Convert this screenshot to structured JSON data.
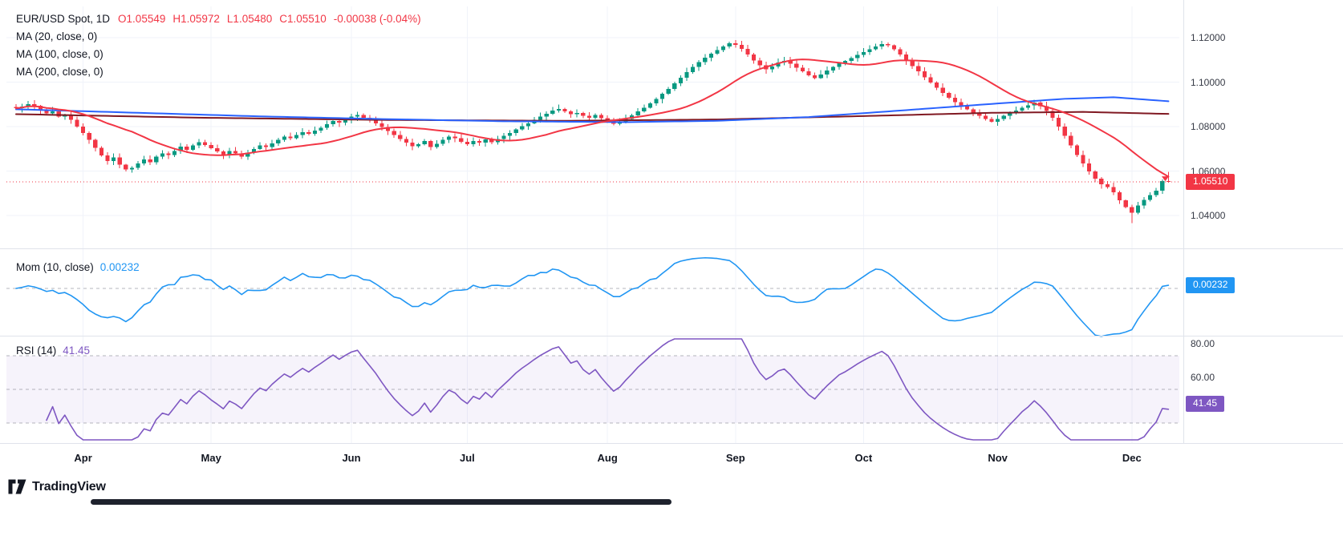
{
  "header": {
    "symbol": "EUR/USD Spot, 1D",
    "ohlc": [
      "O1.05549",
      "H1.05972",
      "L1.05480",
      "C1.05510",
      "-0.00038 (-0.04%)"
    ],
    "ma_labels": [
      "MA (20, close, 0)",
      "MA (100, close, 0)",
      "MA (200, close, 0)"
    ]
  },
  "panes": {
    "momentum": {
      "label": "Mom (10, close)",
      "value": "0.00232"
    },
    "rsi": {
      "label": "RSI (14)",
      "value": "41.45"
    }
  },
  "price_axis": {
    "labels": [
      {
        "text": "1.12000",
        "value": 1.12
      },
      {
        "text": "1.10000",
        "value": 1.1
      },
      {
        "text": "1.08000",
        "value": 1.08
      },
      {
        "text": "1.06000",
        "value": 1.06
      },
      {
        "text": "1.04000",
        "value": 1.04
      }
    ],
    "last_price_badge": "1.05510"
  },
  "colors": {
    "up": "#089981",
    "down": "#f23645",
    "ma20": "#f23645",
    "ma100": "#2962ff",
    "ma200": "#801922",
    "mom": "#2196f3",
    "rsi": "#7e57c2",
    "grid": "#f0f3fa",
    "separator": "#e0e3eb",
    "dashed": "#787b86"
  },
  "footer": {
    "logo_text": "TradingView"
  },
  "chart_data": {
    "type": "candlestick",
    "title": "EUR/USD Spot, 1D",
    "interval": "1D",
    "price_ylim": [
      1.035,
      1.125
    ],
    "last_candle": {
      "open": 1.05549,
      "high": 1.05972,
      "low": 1.0548,
      "close": 1.0551
    },
    "closes": [
      1.0882,
      1.089,
      1.0901,
      1.0893,
      1.0878,
      1.086,
      1.0868,
      1.0845,
      1.0852,
      1.083,
      1.08,
      1.0772,
      1.074,
      1.0705,
      1.067,
      1.0645,
      1.0662,
      1.0628,
      1.0608,
      1.0615,
      1.0635,
      1.0652,
      1.064,
      1.0665,
      1.068,
      1.0672,
      1.069,
      1.071,
      1.0695,
      1.0715,
      1.073,
      1.0718,
      1.0702,
      1.0688,
      1.0672,
      1.069,
      1.068,
      1.0665,
      1.0682,
      1.07,
      1.0715,
      1.0708,
      1.0725,
      1.074,
      1.0755,
      1.0748,
      1.0762,
      1.0775,
      1.0768,
      1.0782,
      1.0795,
      1.081,
      1.0825,
      1.0818,
      1.0832,
      1.0845,
      1.0852,
      1.084,
      1.0828,
      1.0815,
      1.0798,
      1.078,
      1.0762,
      1.0745,
      1.0728,
      1.0712,
      1.072,
      1.0735,
      1.0708,
      1.0722,
      1.074,
      1.0755,
      1.0748,
      1.0732,
      1.072,
      1.0735,
      1.0728,
      1.0742,
      1.073,
      1.0745,
      1.0758,
      1.0772,
      1.0788,
      1.0802,
      1.0815,
      1.083,
      1.0845,
      1.0858,
      1.0872,
      1.088,
      1.0868,
      1.0855,
      1.0862,
      1.0848,
      1.084,
      1.0852,
      1.0838,
      1.0825,
      1.0812,
      1.082,
      1.0835,
      1.085,
      1.0868,
      1.0885,
      1.0905,
      1.0925,
      1.0948,
      1.097,
      1.0995,
      1.102,
      1.1045,
      1.1068,
      1.109,
      1.111,
      1.1128,
      1.1145,
      1.116,
      1.1175,
      1.1168,
      1.115,
      1.1125,
      1.1098,
      1.1075,
      1.1058,
      1.107,
      1.1088,
      1.1095,
      1.1082,
      1.1065,
      1.1048,
      1.103,
      1.1018,
      1.1035,
      1.1052,
      1.1068,
      1.1085,
      1.1095,
      1.1108,
      1.1122,
      1.1135,
      1.1148,
      1.116,
      1.1172,
      1.1165,
      1.1148,
      1.1125,
      1.1098,
      1.1072,
      1.1048,
      1.1022,
      1.0998,
      1.0975,
      1.0952,
      1.093,
      1.091,
      1.0892,
      1.0878,
      1.0862,
      1.0848,
      1.0835,
      1.0822,
      1.0835,
      1.0848,
      1.086,
      1.0872,
      1.0885,
      1.0895,
      1.0908,
      1.0892,
      1.087,
      1.084,
      1.08,
      1.0758,
      1.0715,
      1.0672,
      1.0635,
      1.0598,
      1.0565,
      1.054,
      1.0528,
      1.0505,
      1.0468,
      1.0438,
      1.0412,
      1.0445,
      1.047,
      1.0492,
      1.0512,
      1.0555,
      1.0551
    ],
    "x_ticks": [
      {
        "label": "Apr",
        "bar": 11
      },
      {
        "label": "May",
        "bar": 32
      },
      {
        "label": "Jun",
        "bar": 55
      },
      {
        "label": "Jul",
        "bar": 74
      },
      {
        "label": "Aug",
        "bar": 97
      },
      {
        "label": "Sep",
        "bar": 118
      },
      {
        "label": "Oct",
        "bar": 139
      },
      {
        "label": "Nov",
        "bar": 161
      },
      {
        "label": "Dec",
        "bar": 183
      }
    ],
    "overlays": [
      {
        "name": "MA (20, close, 0)",
        "color_key": "ma20",
        "source": "sma_20_of_closes"
      },
      {
        "name": "MA (100, close, 0)",
        "color_key": "ma100",
        "waypoints": [
          [
            0,
            1.0878
          ],
          [
            20,
            1.0862
          ],
          [
            40,
            1.0846
          ],
          [
            60,
            1.0834
          ],
          [
            80,
            1.0824
          ],
          [
            100,
            1.082
          ],
          [
            115,
            1.0826
          ],
          [
            130,
            1.0843
          ],
          [
            145,
            1.0872
          ],
          [
            160,
            1.0902
          ],
          [
            172,
            1.0925
          ],
          [
            180,
            1.0932
          ],
          [
            189,
            1.0914
          ]
        ]
      },
      {
        "name": "MA (200, close, 0)",
        "color_key": "ma200",
        "waypoints": [
          [
            0,
            1.0856
          ],
          [
            30,
            1.084
          ],
          [
            60,
            1.083
          ],
          [
            90,
            1.0826
          ],
          [
            115,
            1.0832
          ],
          [
            140,
            1.0848
          ],
          [
            160,
            1.0862
          ],
          [
            175,
            1.0866
          ],
          [
            189,
            1.0857
          ]
        ]
      }
    ],
    "momentum": {
      "period": 10,
      "last": 0.00232
    },
    "rsi": {
      "period": 14,
      "last": 41.45,
      "bands": [
        70,
        50,
        30
      ],
      "band_fill": [
        30,
        70
      ],
      "axis_labels": [
        {
          "text": "80.00",
          "value": 80
        },
        {
          "text": "60.00",
          "value": 60
        }
      ]
    },
    "last_price": 1.0551
  }
}
